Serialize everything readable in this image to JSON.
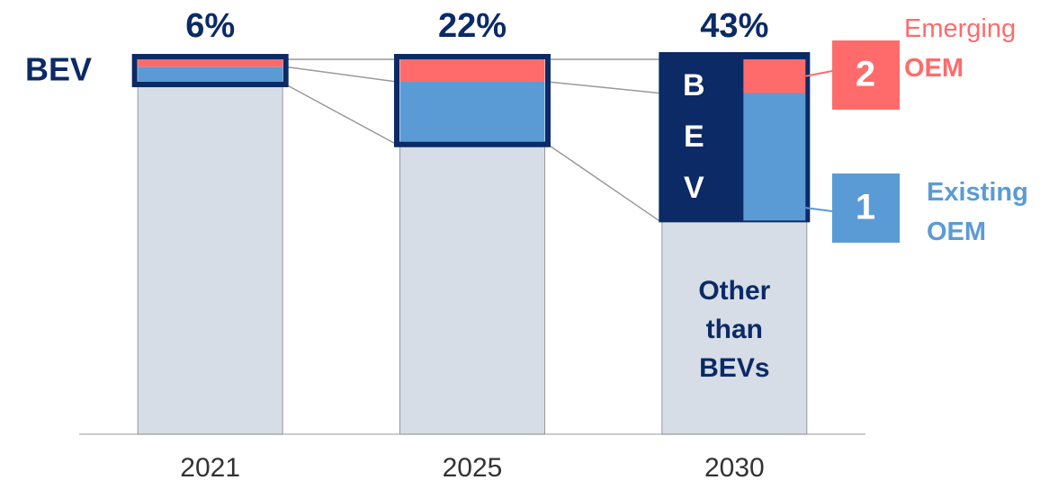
{
  "chart_data": {
    "type": "stacked_bar",
    "categories": [
      "2021",
      "2025",
      "2030"
    ],
    "ylim": [
      0,
      100
    ],
    "series": [
      {
        "name": "Other than BEVs",
        "color": "#d6dde6",
        "values": [
          94,
          78,
          57
        ]
      },
      {
        "name": "Existing OEM",
        "color": "#5b9bd5",
        "marker": 1,
        "values": [
          4,
          16,
          34
        ]
      },
      {
        "name": "Emerging OEM",
        "color": "#ff6b6b",
        "marker": 2,
        "values": [
          2,
          6,
          9
        ]
      }
    ],
    "bev_label": "BEV",
    "bev_share": {
      "values": [
        6,
        22,
        43
      ],
      "value_labels": [
        "6%",
        "22%",
        "43%"
      ]
    },
    "highlight_color": "#0b2a66"
  }
}
